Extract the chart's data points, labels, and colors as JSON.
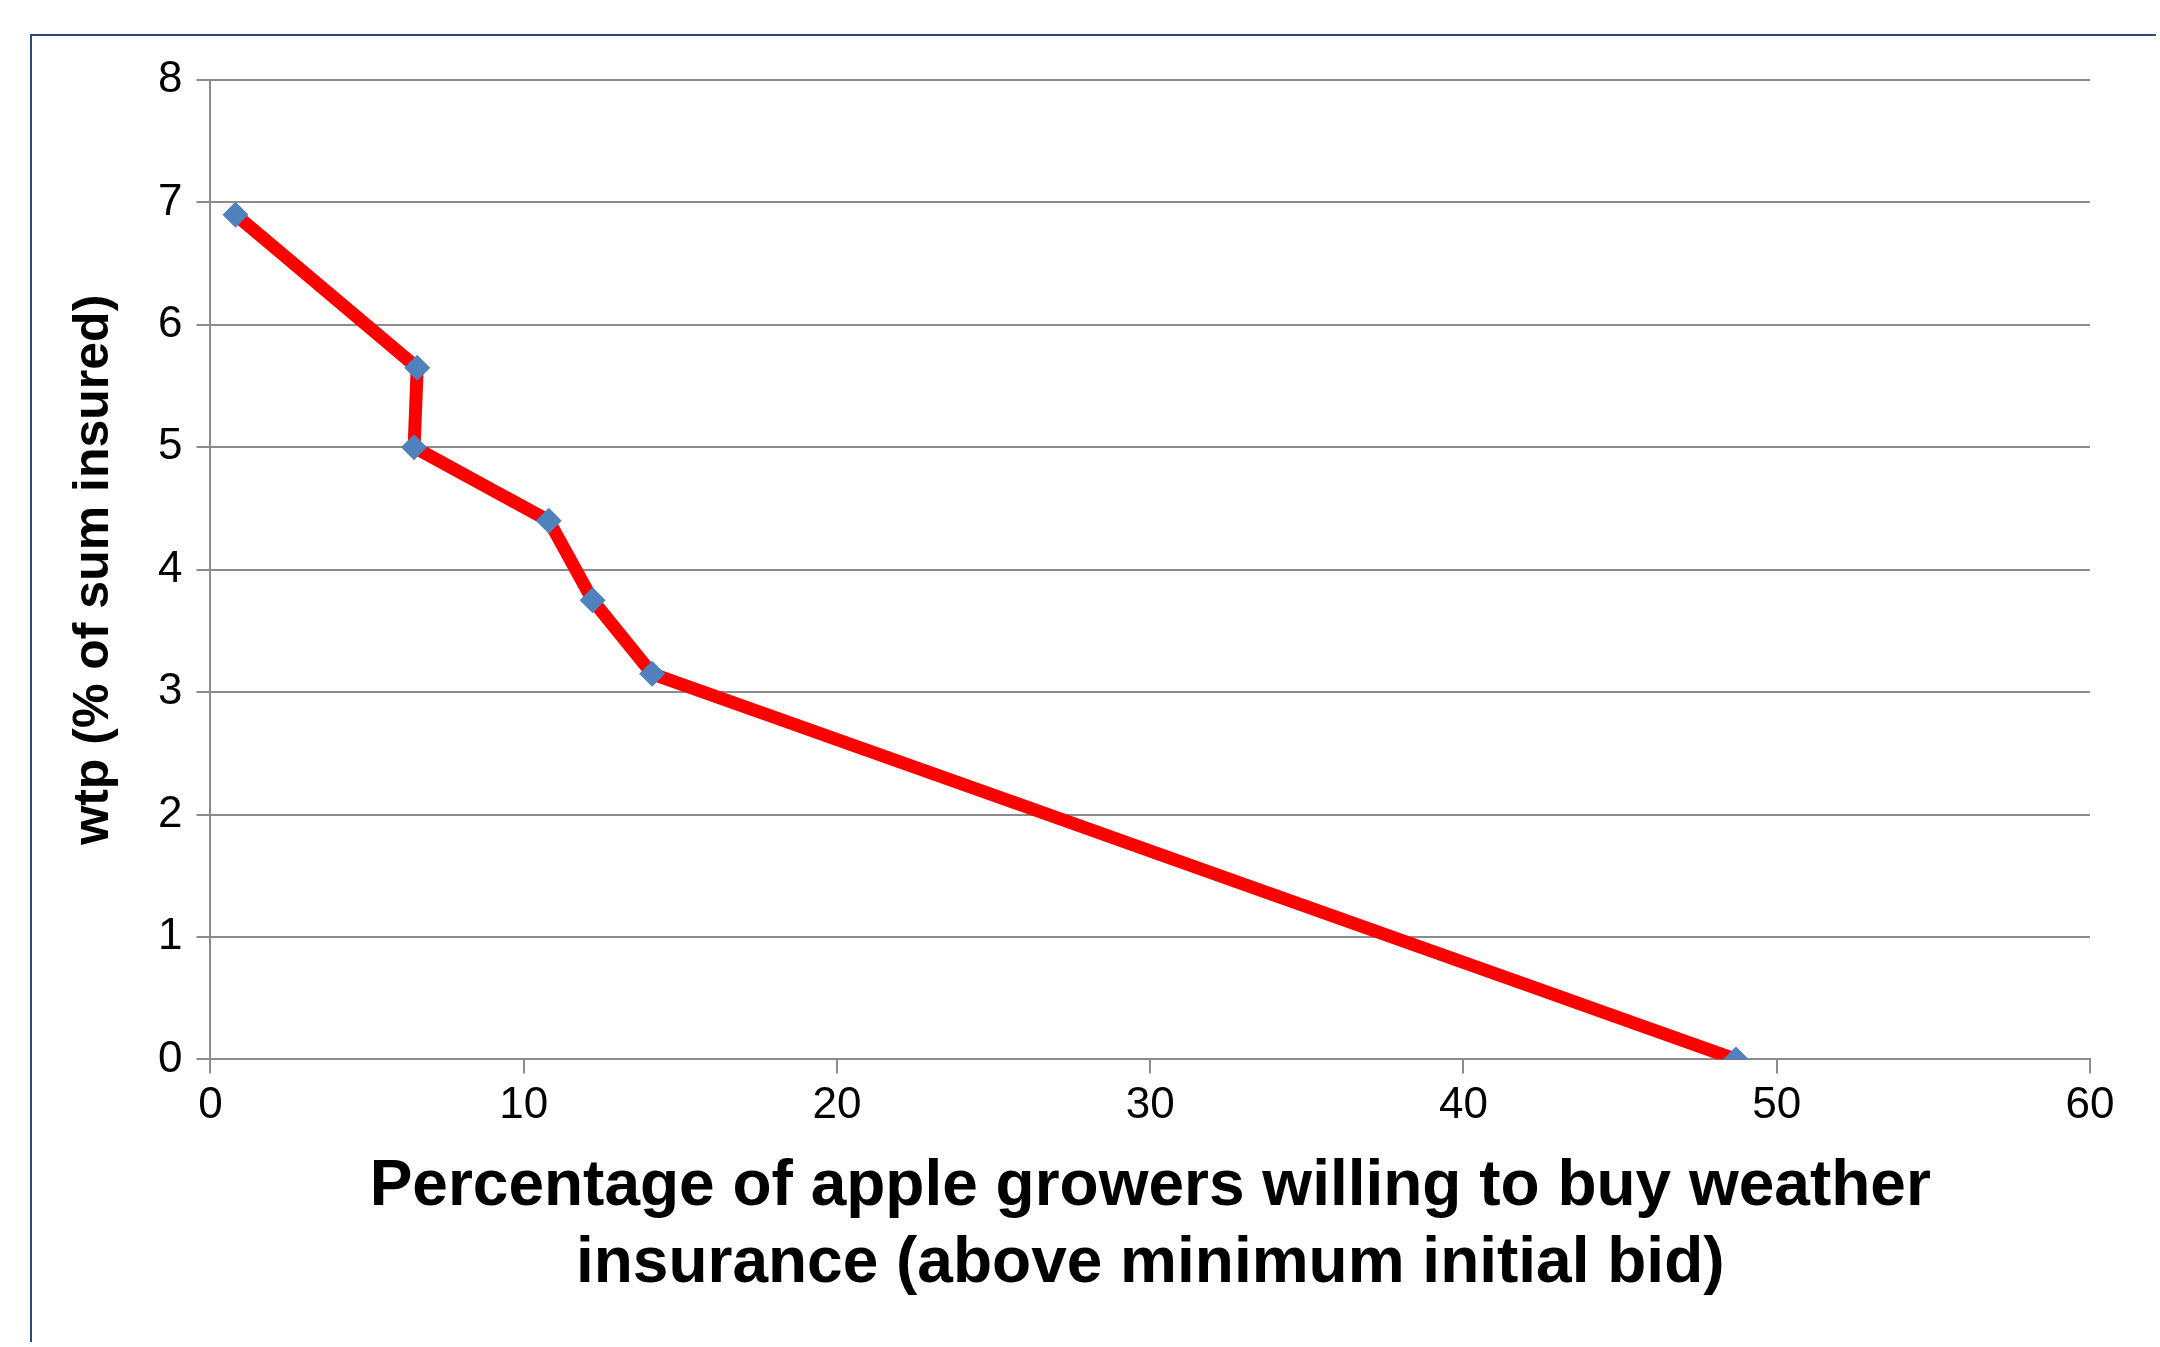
{
  "chart_data": {
    "type": "line",
    "xlabel": "Percentage of apple growers willing to buy weather insurance (above minimum initial bid)",
    "ylabel": "wtp (% of sum insured)",
    "series": [
      {
        "color": "#ff0000",
        "marker": "none",
        "x": [
          0.8,
          6.6,
          6.5,
          10.8,
          12.2,
          14.1,
          48.7
        ],
        "values": [
          6.9,
          5.65,
          5.0,
          4.4,
          3.75,
          3.15,
          0
        ]
      },
      {
        "type": "scatter",
        "color": "#4f81bd",
        "marker": "diamond",
        "x": [
          0.8,
          6.6,
          6.5,
          10.8,
          12.2,
          14.1,
          48.7
        ],
        "values": [
          6.9,
          5.65,
          5.0,
          4.4,
          3.75,
          3.15,
          0
        ]
      }
    ],
    "xlim": [
      0,
      60
    ],
    "xticks": [
      0,
      10,
      20,
      30,
      40,
      50,
      60
    ],
    "ylim": [
      0,
      8
    ],
    "yticks": [
      0,
      1,
      2,
      3,
      4,
      5,
      6,
      7,
      8
    ],
    "grid": "y",
    "legend": false,
    "line_style": "solid"
  }
}
